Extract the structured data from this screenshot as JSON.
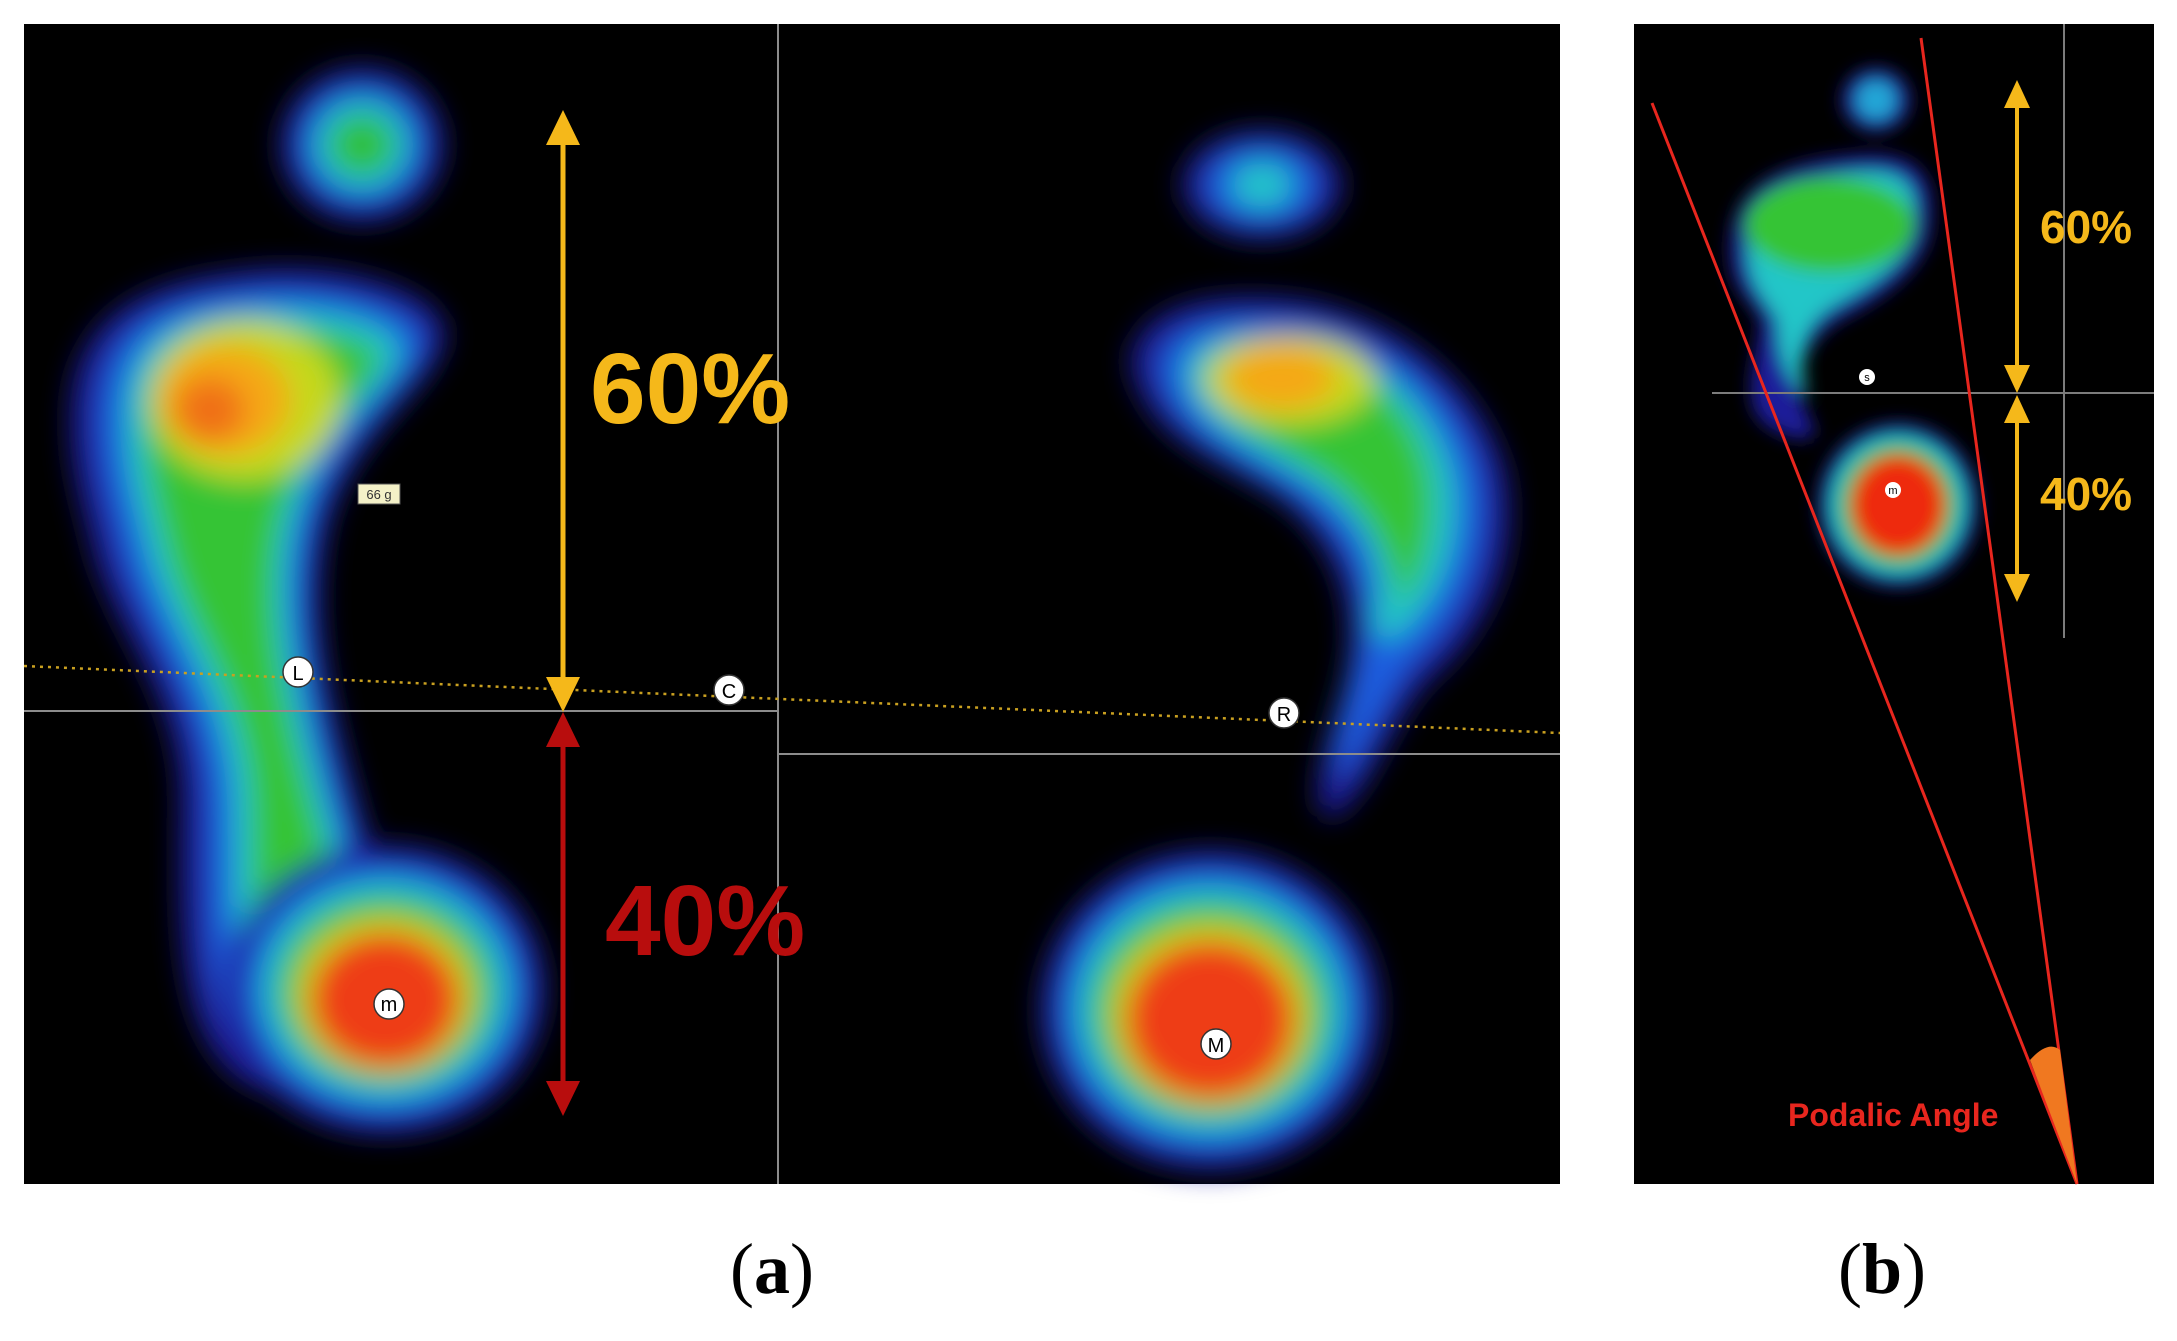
{
  "panel_a": {
    "heel_marker_left": "m",
    "heel_marker_right": "M",
    "point_left": "L",
    "point_center": "C",
    "point_right": "R",
    "tag": "66 g",
    "upper_pct": "60%",
    "lower_pct": "40%",
    "caption": "a",
    "colors": {
      "upper": "#f5b81a",
      "lower": "#b80d0d"
    }
  },
  "panel_b": {
    "heel_marker": "m",
    "point": "s",
    "upper_pct": "60%",
    "lower_pct": "40%",
    "angle_label": "Podalic Angle",
    "caption": "b",
    "colors": {
      "upper": "#f5b81a",
      "angle": "#e8261e"
    }
  }
}
